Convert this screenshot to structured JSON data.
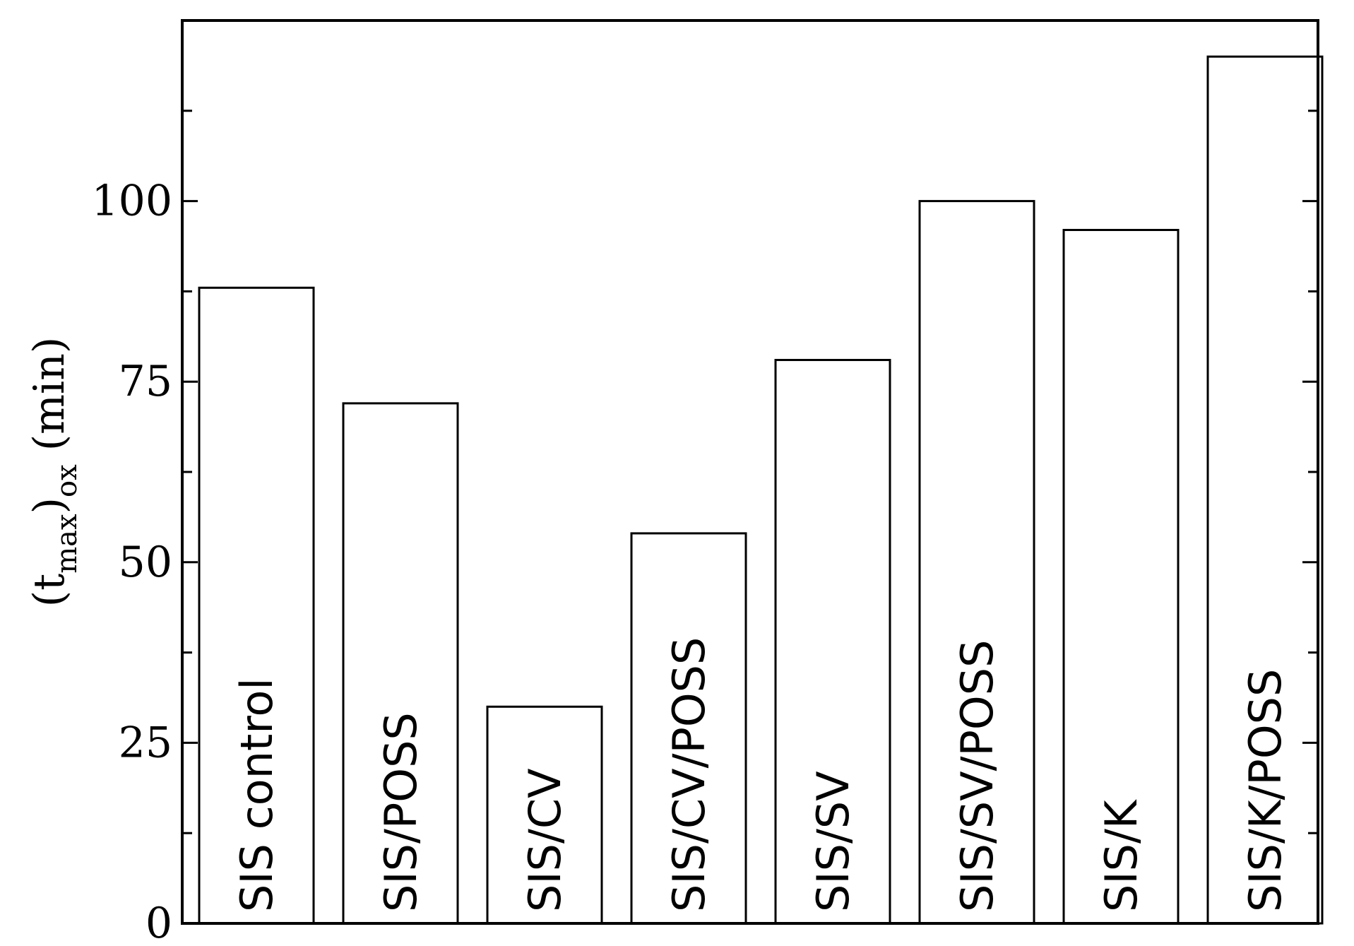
{
  "chart_data": {
    "type": "bar",
    "categories": [
      "SIS control",
      "SIS/POSS",
      "SIS/CV",
      "SIS/CV/POSS",
      "SIS/SV",
      "SIS/SV/POSS",
      "SIS/K",
      "SIS/K/POSS"
    ],
    "values": [
      88,
      72,
      30,
      54,
      78,
      100,
      96,
      120
    ],
    "ylabel": {
      "open": "(t",
      "sub1": "max",
      "mid": ")",
      "sub2": "ox",
      "unit": " (min)"
    },
    "ylim": [
      0,
      125
    ],
    "yticks": [
      0,
      25,
      50,
      75,
      100
    ],
    "minor_tick_step": 12.5,
    "grid": false,
    "legend": "none",
    "bar_fill": "#ffffff",
    "bar_stroke": "#000000"
  }
}
